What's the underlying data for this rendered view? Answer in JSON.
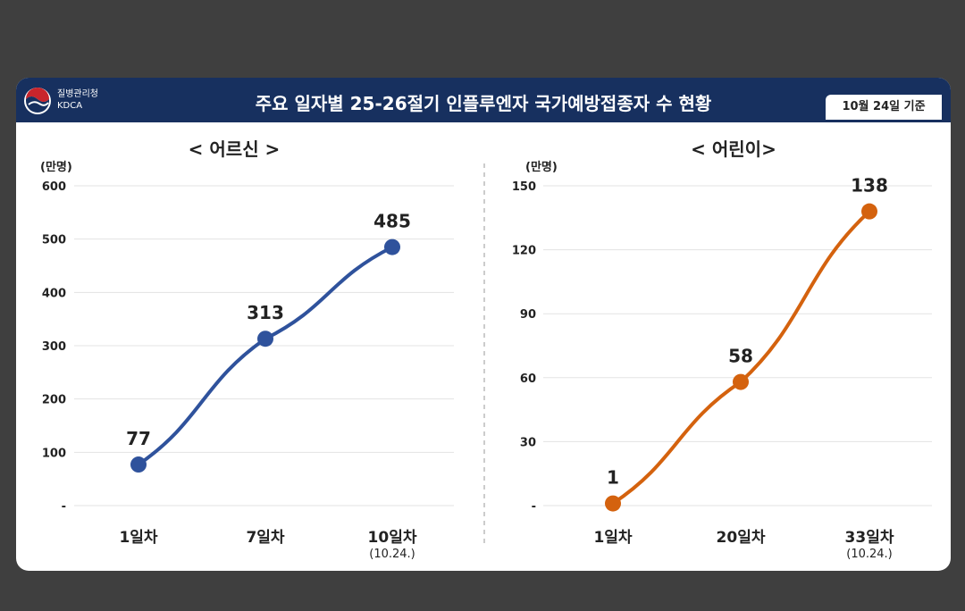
{
  "header": {
    "org_name": "질병관리청",
    "org_abbr": "KDCA",
    "title": "주요 일자별 25-26절기 인플루엔자 국가예방접종자 수 현황",
    "basis_date": "10월 24일 기준"
  },
  "colors": {
    "header_bg": "#17305f",
    "adult_series": "#2f529c",
    "child_series": "#d4620e"
  },
  "chart_data": [
    {
      "type": "line",
      "title": "< 어르신 >",
      "unit_label": "(만명)",
      "categories": [
        "1일차",
        "7일차",
        "10일차"
      ],
      "category_sublabels": [
        "",
        "",
        "(10.24.)"
      ],
      "values": [
        77,
        313,
        485
      ],
      "ylim": [
        0,
        600
      ],
      "yticks": [
        0,
        100,
        200,
        300,
        400,
        500,
        600
      ],
      "ytick_labels": [
        "-",
        "100",
        "200",
        "300",
        "400",
        "500",
        "600"
      ],
      "grid": true
    },
    {
      "type": "line",
      "title": "< 어린이>",
      "unit_label": "(만명)",
      "categories": [
        "1일차",
        "20일차",
        "33일차"
      ],
      "category_sublabels": [
        "",
        "",
        "(10.24.)"
      ],
      "values": [
        1,
        58,
        138
      ],
      "ylim": [
        0,
        150
      ],
      "yticks": [
        0,
        30,
        60,
        90,
        120,
        150
      ],
      "ytick_labels": [
        "-",
        "30",
        "60",
        "90",
        "120",
        "150"
      ],
      "grid": true
    }
  ]
}
